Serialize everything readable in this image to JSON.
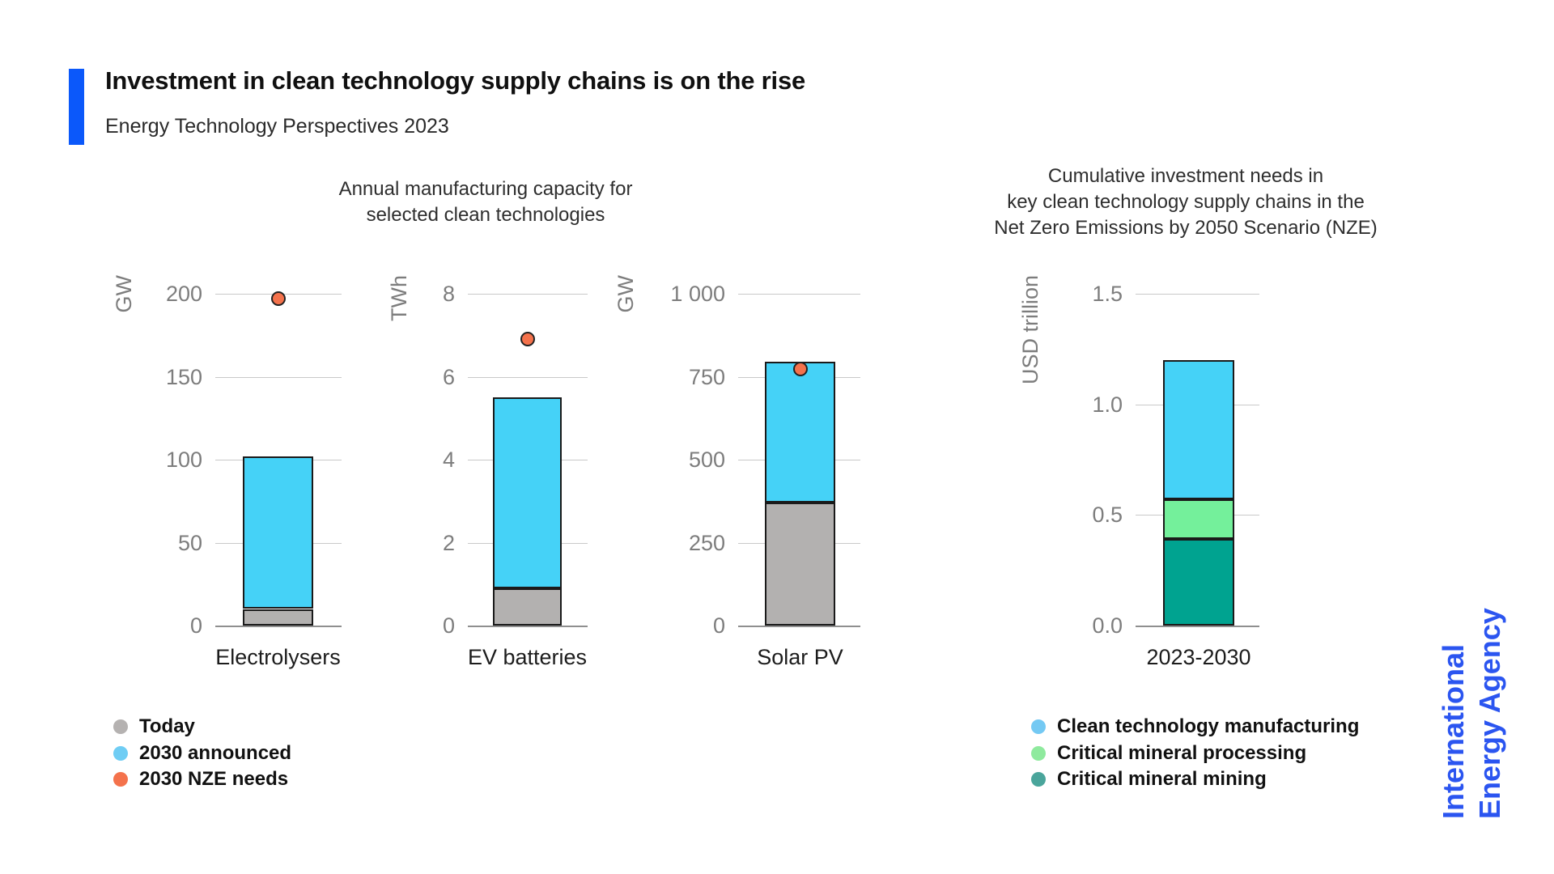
{
  "header": {
    "title": "Investment in clean technology supply chains is on the rise",
    "subtitle": "Energy Technology Perspectives 2023"
  },
  "branding": {
    "line1": "International",
    "line2": "Energy Agency",
    "color": "#2b55f0"
  },
  "colors": {
    "accent_bar": "#0b58fa",
    "grid_line": "#c9c9c9",
    "zero_axis": "#8f8f8f",
    "tick_text": "#7d7d7d"
  },
  "chart_data": [
    {
      "type": "bar",
      "title_lines": [
        "Annual manufacturing capacity for",
        "selected clean technologies"
      ],
      "bar_colors": {
        "today": "#b3b1b0",
        "announced": "#45d2f7"
      },
      "dot_color": "#f4724c",
      "legend": [
        {
          "label": "Today",
          "color": "#b5b2b1"
        },
        {
          "label": "2030 announced",
          "color": "#6fcdf4"
        },
        {
          "label": "2030 NZE needs",
          "color": "#f4724c"
        }
      ],
      "panels": [
        {
          "category": "Electrolysers",
          "unit": "GW",
          "ymax": 200,
          "ticks": [
            {
              "v": 0,
              "label": "0"
            },
            {
              "v": 50,
              "label": "50"
            },
            {
              "v": 100,
              "label": "100"
            },
            {
              "v": 150,
              "label": "150"
            },
            {
              "v": 200,
              "label": "200"
            }
          ],
          "today": 10,
          "announced_2030": 102,
          "nze_needs_2030": 197
        },
        {
          "category": "EV batteries",
          "unit": "TWh",
          "ymax": 8,
          "ticks": [
            {
              "v": 0,
              "label": "0"
            },
            {
              "v": 2,
              "label": "2"
            },
            {
              "v": 4,
              "label": "4"
            },
            {
              "v": 6,
              "label": "6"
            },
            {
              "v": 8,
              "label": "8"
            }
          ],
          "today": 0.9,
          "announced_2030": 5.5,
          "nze_needs_2030": 6.9
        },
        {
          "category": "Solar PV",
          "unit": "GW",
          "ymax": 1000,
          "ticks": [
            {
              "v": 0,
              "label": "0"
            },
            {
              "v": 250,
              "label": "250"
            },
            {
              "v": 500,
              "label": "500"
            },
            {
              "v": 750,
              "label": "750"
            },
            {
              "v": 1000,
              "label": "1 000"
            }
          ],
          "today": 370,
          "announced_2030": 795,
          "nze_needs_2030": 772
        }
      ]
    },
    {
      "type": "stacked-bar",
      "title_lines": [
        "Cumulative investment needs in",
        "key clean technology supply chains in the",
        "Net Zero Emissions by 2050 Scenario (NZE)"
      ],
      "unit": "USD trillion",
      "category": "2023-2030",
      "ymax": 1.5,
      "ticks": [
        {
          "v": 0,
          "label": "0.0"
        },
        {
          "v": 0.5,
          "label": "0.5"
        },
        {
          "v": 1.0,
          "label": "1.0"
        },
        {
          "v": 1.5,
          "label": "1.5"
        }
      ],
      "segments": [
        {
          "name": "Critical mineral mining",
          "value": 0.39,
          "color": "#00a390"
        },
        {
          "name": "Critical mineral processing",
          "value": 0.18,
          "color": "#74f09b"
        },
        {
          "name": "Clean technology manufacturing",
          "value": 0.63,
          "color": "#45d2f7"
        }
      ],
      "legend": [
        {
          "label": "Clean technology manufacturing",
          "color": "#74c9f3"
        },
        {
          "label": "Critical mineral processing",
          "color": "#8fea9e"
        },
        {
          "label": "Critical mineral mining",
          "color": "#4aa59b"
        }
      ]
    }
  ]
}
